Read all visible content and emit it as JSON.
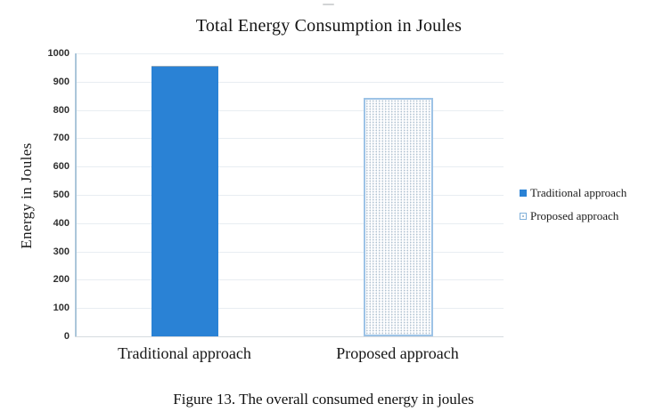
{
  "figure": {
    "caption": "Figure 13. The overall consumed energy in joules"
  },
  "chart_data": {
    "type": "bar",
    "title": "Total Energy Consumption in Joules",
    "xlabel": "",
    "ylabel": "Energy  in Joules",
    "ylim": [
      0,
      1000
    ],
    "ytick_step": 100,
    "grid": true,
    "legend_position": "right",
    "categories": [
      "Traditional approach",
      "Proposed approach"
    ],
    "series": [
      {
        "name": "Traditional approach",
        "values": [
          955,
          null
        ],
        "fill": "solid",
        "color": "#2a82d5"
      },
      {
        "name": "Proposed approach",
        "values": [
          null,
          843
        ],
        "fill": "dotted",
        "border_color": "#9dc3e6",
        "dot_color": "#b0c1d1"
      }
    ]
  }
}
